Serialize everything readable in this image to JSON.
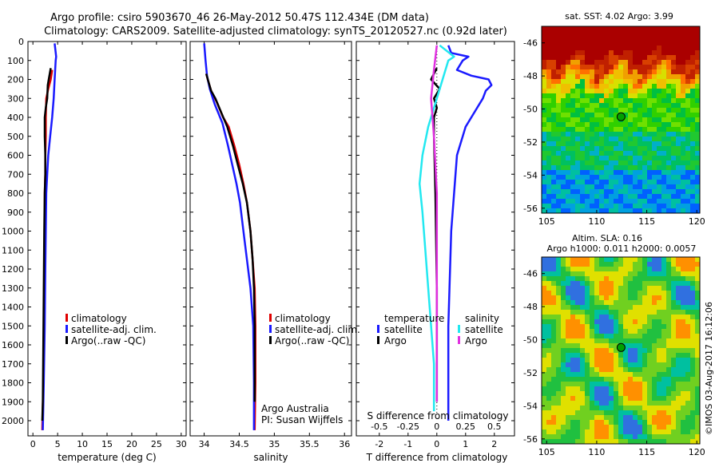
{
  "header": {
    "line1": "Argo profile: csiro 5903670_46 26-May-2012 50.47S 112.434E (DM data)",
    "line2": "Climatology: CARS2009. Satellite-adjusted climatology: synTS_20120527.nc (0.92d later)"
  },
  "colors": {
    "climatology": "#e00000",
    "satellite": "#1a1aff",
    "argo": "#000000",
    "sal_satellite": "#22e8f0",
    "sal_argo": "#e030e0"
  },
  "chart_data": [
    {
      "type": "line",
      "xlabel": "temperature (deg C)",
      "ylabel": "",
      "xlim": [
        -1,
        31
      ],
      "ylim": [
        2080,
        0
      ],
      "xticks": [
        0,
        5,
        10,
        15,
        20,
        25,
        30
      ],
      "yticks": [
        0,
        100,
        200,
        300,
        400,
        500,
        600,
        700,
        800,
        900,
        1000,
        1100,
        1200,
        1300,
        1400,
        1500,
        1600,
        1700,
        1800,
        1900,
        2000
      ],
      "legend": [
        "climatology",
        "satellite-adj. clim.",
        "Argo(..raw -QC)"
      ],
      "series": [
        {
          "name": "climatology",
          "x": [
            3.9,
            3.6,
            3.1,
            2.7,
            2.6,
            2.6,
            2.5,
            2.5,
            2.4,
            2.4,
            2.3,
            2.2,
            2.1,
            1.9
          ],
          "y": [
            150,
            200,
            250,
            300,
            400,
            500,
            600,
            700,
            800,
            1000,
            1200,
            1500,
            1800,
            2050
          ]
        },
        {
          "name": "satellite-adj. clim.",
          "x": [
            4.4,
            4.7,
            4.6,
            4.4,
            4.2,
            3.9,
            3.5,
            3.1,
            2.9,
            2.7,
            2.6,
            2.5,
            2.4,
            2.2,
            2.0
          ],
          "y": [
            10,
            80,
            100,
            200,
            300,
            400,
            500,
            600,
            700,
            800,
            1000,
            1200,
            1500,
            1800,
            2050
          ]
        },
        {
          "name": "Argo(..raw -QC)",
          "x": [
            3.6,
            3.2,
            3.0,
            2.9,
            2.6,
            2.4,
            2.4,
            2.5,
            2.5,
            2.4,
            2.3,
            2.2,
            2.1,
            2.0,
            1.9
          ],
          "y": [
            140,
            200,
            230,
            300,
            350,
            400,
            500,
            600,
            700,
            800,
            1000,
            1300,
            1600,
            1900,
            2000
          ]
        }
      ]
    },
    {
      "type": "line",
      "xlabel": "salinity",
      "ylabel": "",
      "xlim": [
        33.8,
        36.1
      ],
      "ylim": [
        2080,
        0
      ],
      "xticks": [
        34,
        34.5,
        35,
        35.5,
        36
      ],
      "legend": [
        "climatology",
        "satellite-adj. clim.",
        "Argo(..raw -QC)"
      ],
      "annotation": [
        "Argo Australia",
        "PI: Susan Wijffels"
      ],
      "series": [
        {
          "name": "climatology",
          "x": [
            34.03,
            34.05,
            34.1,
            34.18,
            34.27,
            34.35,
            34.43,
            34.5,
            34.56,
            34.61,
            34.66,
            34.69,
            34.72,
            34.73,
            34.73,
            34.72
          ],
          "y": [
            170,
            200,
            260,
            320,
            400,
            450,
            550,
            650,
            750,
            850,
            1000,
            1150,
            1300,
            1500,
            1800,
            2050
          ]
        },
        {
          "name": "satellite-adj. clim.",
          "x": [
            34.0,
            34.02,
            34.04,
            34.08,
            34.15,
            34.26,
            34.34,
            34.4,
            34.46,
            34.51,
            34.56,
            34.61,
            34.66,
            34.7,
            34.71,
            34.71
          ],
          "y": [
            10,
            100,
            180,
            250,
            330,
            430,
            550,
            650,
            750,
            850,
            1000,
            1150,
            1300,
            1500,
            1800,
            2050
          ]
        },
        {
          "name": "Argo(..raw -QC)",
          "x": [
            34.03,
            34.06,
            34.1,
            34.16,
            34.25,
            34.33,
            34.41,
            34.48,
            34.55,
            34.61,
            34.66,
            34.69,
            34.71,
            34.72,
            34.72
          ],
          "y": [
            170,
            210,
            260,
            300,
            380,
            450,
            550,
            650,
            750,
            850,
            1000,
            1150,
            1300,
            1500,
            1900
          ]
        }
      ]
    },
    {
      "type": "line",
      "xlabel": "T difference from climatology",
      "xlabel2": "S difference from climatology",
      "ylabel": "",
      "xlim": [
        -2.8,
        2.7
      ],
      "ylim": [
        2080,
        0
      ],
      "xticks": [
        -2,
        -1,
        0,
        1,
        2
      ],
      "xticks_top": [
        "-0.5",
        "-0.25",
        "0",
        "0.25",
        "0.5"
      ],
      "xticks_top_pos": [
        -2,
        -1,
        0,
        1,
        2
      ],
      "legend_group1": "temperature",
      "legend_group2": "salinity",
      "legend": [
        "satellite",
        "Argo",
        "satellite",
        "Argo"
      ],
      "series": [
        {
          "name": "temperature satellite",
          "x": [
            0.4,
            0.5,
            1.1,
            0.9,
            0.7,
            1.2,
            1.8,
            1.9,
            1.7,
            1.6,
            1.4,
            1.2,
            1.0,
            0.9,
            0.8,
            0.7,
            0.6,
            0.5,
            0.4,
            0.4
          ],
          "y": [
            20,
            60,
            80,
            100,
            150,
            180,
            200,
            230,
            260,
            300,
            350,
            400,
            450,
            500,
            550,
            600,
            800,
            1000,
            1500,
            2000
          ]
        },
        {
          "name": "temperature Argo",
          "x": [
            0.0,
            -0.2,
            0.1,
            -0.1,
            0.0,
            -0.1,
            -0.1,
            -0.05,
            0.0,
            0.0
          ],
          "y": [
            140,
            200,
            250,
            300,
            350,
            400,
            500,
            800,
            1300,
            1900
          ]
        },
        {
          "name": "salinity satellite",
          "x": [
            0.1,
            0.6,
            0.4,
            0.3,
            0.2,
            0.0,
            -0.3,
            -0.5,
            -0.6,
            -0.5,
            -0.4,
            -0.3,
            -0.2,
            -0.1,
            -0.1
          ],
          "y": [
            20,
            80,
            100,
            150,
            200,
            300,
            450,
            600,
            750,
            900,
            1100,
            1300,
            1500,
            1700,
            1950
          ]
        },
        {
          "name": "salinity Argo",
          "x": [
            0.0,
            -0.1,
            -0.2,
            -0.1,
            0.0,
            0.0,
            0.0
          ],
          "y": [
            20,
            150,
            300,
            500,
            800,
            1400,
            1900
          ]
        }
      ]
    }
  ],
  "maps": [
    {
      "title": "sat. SST: 4.02 Argo: 3.99",
      "xticks": [
        105,
        110,
        115,
        120
      ],
      "yticks": [
        -46,
        -48,
        -50,
        -52,
        -54,
        -56
      ],
      "marker": {
        "lon": 112.434,
        "lat": -50.47
      }
    },
    {
      "title_line1": "Altim. SLA: 0.16",
      "title_line2": "Argo h1000: 0.011 h2000: 0.0057",
      "xticks": [
        105,
        110,
        115,
        120
      ],
      "yticks": [
        -46,
        -48,
        -50,
        -52,
        -54,
        -56
      ],
      "marker": {
        "lon": 112.434,
        "lat": -50.47
      }
    }
  ],
  "credit": "©IMOS 03-Aug-2017 16:12:06"
}
